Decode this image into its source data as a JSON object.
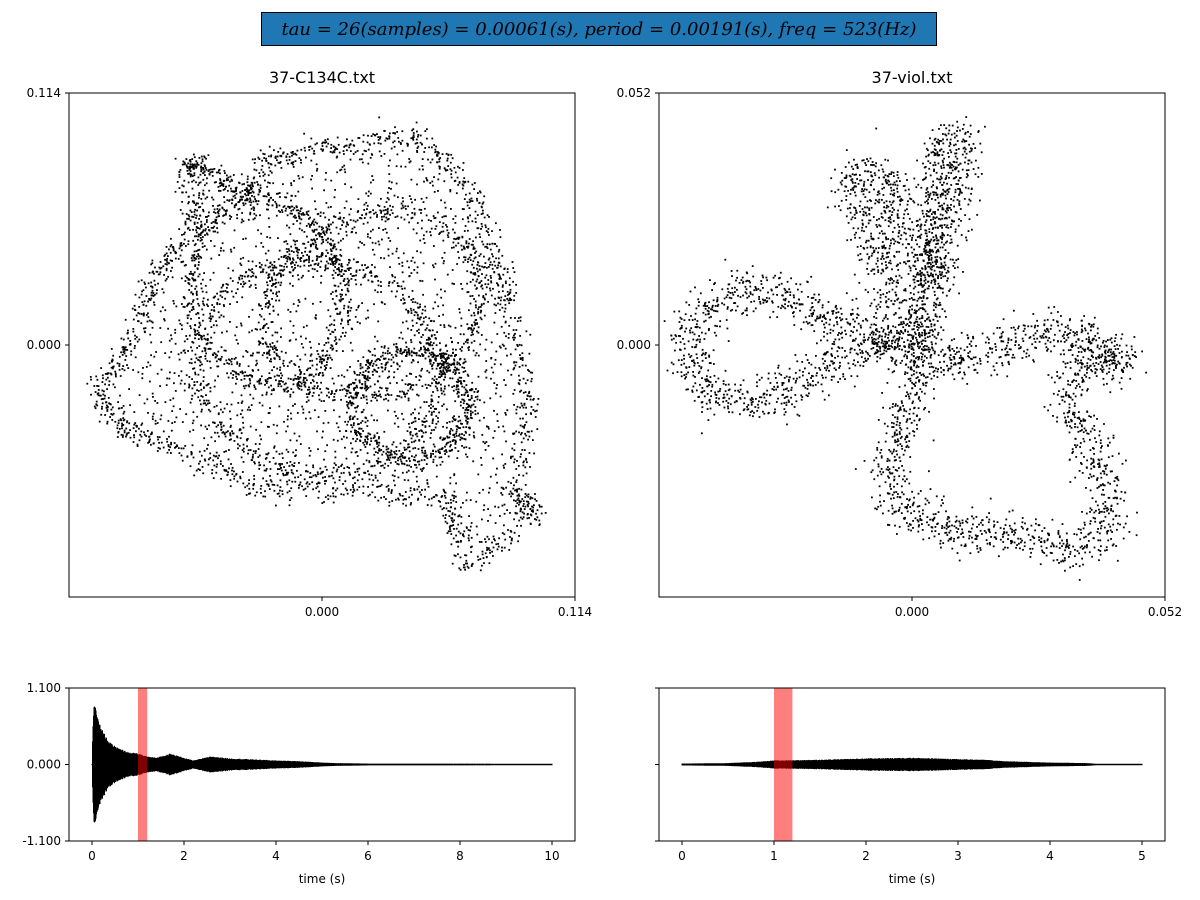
{
  "suptitle": "tau = 26(samples) = 0.00061(s), period = 0.00191(s), freq = 523(Hz)",
  "colors": {
    "title_box": "#1f77b4",
    "points": "#000000",
    "highlight": "#ff0000",
    "waveform": "#000000"
  },
  "chart_data": [
    {
      "id": "phase-left",
      "type": "scatter",
      "title": "37-C134C.txt",
      "xlim": [
        -0.114,
        0.114
      ],
      "ylim": [
        -0.114,
        0.114
      ],
      "xticks": [
        "0.000",
        "0.114"
      ],
      "yticks": [
        "0.114",
        "0.000"
      ],
      "xtick_values": [
        0.0,
        0.114
      ],
      "ytick_values": [
        0.114,
        0.0
      ],
      "shape": "delay-embedding point cloud, dense tangled loops",
      "shape_outline": [
        [
          -0.061,
          0.081
        ],
        [
          -0.053,
          0.081
        ],
        [
          -0.035,
          0.067
        ],
        [
          -0.025,
          0.084
        ],
        [
          0.004,
          0.089
        ],
        [
          0.041,
          0.096
        ],
        [
          0.063,
          0.076
        ],
        [
          0.079,
          0.041
        ],
        [
          0.084,
          0.016
        ],
        [
          0.094,
          -0.026
        ],
        [
          0.087,
          -0.068
        ],
        [
          0.097,
          -0.077
        ],
        [
          0.064,
          -0.101
        ],
        [
          0.058,
          -0.07
        ],
        [
          0.021,
          -0.066
        ],
        [
          -0.026,
          -0.066
        ],
        [
          -0.061,
          -0.049
        ],
        [
          -0.088,
          -0.038
        ],
        [
          -0.103,
          -0.022
        ],
        [
          -0.087,
          0.0
        ],
        [
          -0.076,
          0.03
        ],
        [
          -0.057,
          0.056
        ]
      ],
      "loops": [
        {
          "center": [
            -0.002,
            -0.01
          ],
          "rx": 0.055,
          "ry": 0.048,
          "tilt": -0.3
        },
        {
          "center": [
            0.023,
            0.018
          ],
          "rx": 0.05,
          "ry": 0.04,
          "tilt": 0.4
        },
        {
          "center": [
            -0.025,
            0.024
          ],
          "rx": 0.034,
          "ry": 0.042,
          "tilt": 0.2
        },
        {
          "center": [
            0.04,
            -0.027
          ],
          "rx": 0.026,
          "ry": 0.024,
          "tilt": 0.0
        }
      ]
    },
    {
      "id": "phase-right",
      "type": "scatter",
      "title": "37-viol.txt",
      "xlim": [
        -0.052,
        0.052
      ],
      "ylim": [
        -0.052,
        0.052
      ],
      "xticks": [
        "0.000",
        "0.052"
      ],
      "yticks": [
        "0.052",
        "0.000"
      ],
      "xtick_values": [
        0.0,
        0.052
      ],
      "ytick_values": [
        0.052,
        0.0
      ],
      "shape": "three-lobed delay-embedding loop",
      "path": [
        [
          0.005,
          -0.003
        ],
        [
          -0.01,
          0.003
        ],
        [
          -0.022,
          0.008
        ],
        [
          -0.03,
          0.011
        ],
        [
          -0.036,
          0.011
        ],
        [
          -0.042,
          0.008
        ],
        [
          -0.046,
          0.002
        ],
        [
          -0.045,
          -0.006
        ],
        [
          -0.04,
          -0.011
        ],
        [
          -0.033,
          -0.012
        ],
        [
          -0.025,
          -0.009
        ],
        [
          -0.017,
          -0.004
        ],
        [
          -0.007,
          0.0
        ],
        [
          0.002,
          0.003
        ],
        [
          -0.002,
          0.008
        ],
        [
          -0.006,
          0.016
        ],
        [
          -0.009,
          0.024
        ],
        [
          -0.012,
          0.03
        ],
        [
          -0.013,
          0.034
        ],
        [
          -0.01,
          0.036
        ],
        [
          -0.004,
          0.034
        ],
        [
          -0.004,
          0.027
        ],
        [
          0.0,
          0.018
        ],
        [
          0.004,
          0.012
        ],
        [
          0.006,
          0.022
        ],
        [
          0.009,
          0.032
        ],
        [
          0.01,
          0.039
        ],
        [
          0.01,
          0.043
        ],
        [
          0.006,
          0.041
        ],
        [
          0.005,
          0.033
        ],
        [
          0.004,
          0.022
        ],
        [
          0.003,
          0.01
        ],
        [
          0.002,
          0.001
        ],
        [
          0.001,
          -0.008
        ],
        [
          -0.002,
          -0.016
        ],
        [
          -0.004,
          -0.023
        ],
        [
          -0.005,
          -0.029
        ],
        [
          -0.002,
          -0.034
        ],
        [
          0.005,
          -0.037
        ],
        [
          0.012,
          -0.039
        ],
        [
          0.02,
          -0.039
        ],
        [
          0.028,
          -0.041
        ],
        [
          0.035,
          -0.042
        ],
        [
          0.04,
          -0.037
        ],
        [
          0.04,
          -0.028
        ],
        [
          0.036,
          -0.02
        ],
        [
          0.032,
          -0.01
        ],
        [
          0.035,
          -0.002
        ],
        [
          0.04,
          -0.001
        ],
        [
          0.044,
          -0.005
        ],
        [
          0.04,
          -0.002
        ],
        [
          0.032,
          0.003
        ],
        [
          0.024,
          0.002
        ],
        [
          0.016,
          -0.002
        ],
        [
          0.009,
          -0.003
        ],
        [
          0.005,
          -0.003
        ]
      ]
    },
    {
      "id": "wave-left",
      "type": "area",
      "xlabel": "time (s)",
      "xlim": [
        -0.5,
        10.5
      ],
      "ylim": [
        -1.1,
        1.1
      ],
      "xticks": [
        0,
        2,
        4,
        6,
        8,
        10
      ],
      "yticks": [
        "1.100",
        "0.000",
        "-1.100"
      ],
      "ytick_values": [
        1.1,
        0.0,
        -1.1
      ],
      "duration": 10.0,
      "envelope": [
        [
          0.0,
          0.0
        ],
        [
          0.02,
          0.6
        ],
        [
          0.05,
          0.94
        ],
        [
          0.1,
          0.82
        ],
        [
          0.15,
          0.62
        ],
        [
          0.2,
          0.52
        ],
        [
          0.3,
          0.4
        ],
        [
          0.4,
          0.3
        ],
        [
          0.6,
          0.22
        ],
        [
          0.8,
          0.17
        ],
        [
          1.0,
          0.15
        ],
        [
          1.2,
          0.11
        ],
        [
          1.4,
          0.09
        ],
        [
          1.7,
          0.15
        ],
        [
          2.0,
          0.09
        ],
        [
          2.2,
          0.05
        ],
        [
          2.6,
          0.11
        ],
        [
          3.0,
          0.08
        ],
        [
          3.4,
          0.07
        ],
        [
          4.0,
          0.05
        ],
        [
          4.5,
          0.04
        ],
        [
          5.0,
          0.02
        ],
        [
          5.3,
          0.012
        ],
        [
          6.0,
          0.005
        ],
        [
          10.0,
          0.003
        ]
      ],
      "highlight": [
        1.0,
        1.2
      ]
    },
    {
      "id": "wave-right",
      "type": "area",
      "xlabel": "time (s)",
      "xlim": [
        -0.25,
        5.25
      ],
      "ylim": [
        -1.1,
        1.1
      ],
      "xticks": [
        0,
        1,
        2,
        3,
        4,
        5
      ],
      "yticks": [
        "",
        "",
        ""
      ],
      "ytick_values": [
        1.1,
        0.0,
        -1.1
      ],
      "duration": 5.0,
      "envelope": [
        [
          0.0,
          0.005
        ],
        [
          0.5,
          0.012
        ],
        [
          0.8,
          0.03
        ],
        [
          1.0,
          0.05
        ],
        [
          1.5,
          0.06
        ],
        [
          2.0,
          0.08
        ],
        [
          2.5,
          0.09
        ],
        [
          3.0,
          0.07
        ],
        [
          3.3,
          0.06
        ],
        [
          3.5,
          0.04
        ],
        [
          4.0,
          0.02
        ],
        [
          4.4,
          0.012
        ],
        [
          4.5,
          0.003
        ],
        [
          5.0,
          0.003
        ]
      ],
      "highlight": [
        1.0,
        1.2
      ]
    }
  ]
}
